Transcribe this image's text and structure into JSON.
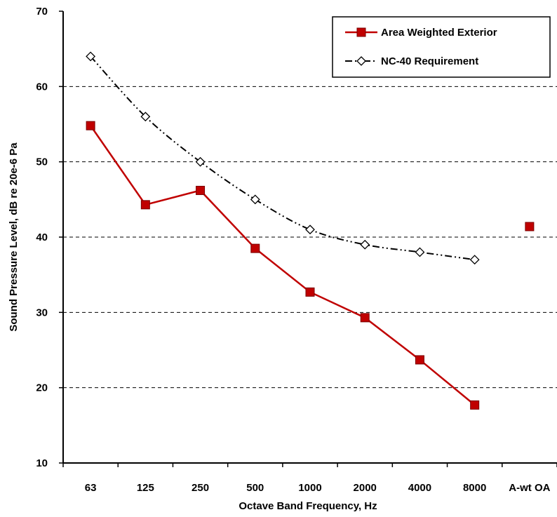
{
  "chart_data": {
    "type": "line",
    "title": "",
    "xlabel": "Octave Band Frequency, Hz",
    "ylabel": "Sound Pressure Level, dB re 20e-6 Pa",
    "ylim": [
      10,
      70
    ],
    "yticks": [
      10,
      20,
      30,
      40,
      50,
      60,
      70
    ],
    "categories": [
      "63",
      "125",
      "250",
      "500",
      "1000",
      "2000",
      "4000",
      "8000",
      "A-wt OA"
    ],
    "grid": "horizontal dashed",
    "legend_position": "top-right",
    "series": [
      {
        "name": "Area Weighted Exterior",
        "color": "#c00000",
        "marker": "filled-square",
        "line": "solid",
        "values": [
          54.8,
          44.3,
          46.2,
          38.5,
          32.7,
          29.3,
          23.7,
          17.7,
          41.4
        ],
        "unconnected_indices": [
          8
        ]
      },
      {
        "name": "NC-40 Requirement",
        "color": "#000000",
        "marker": "open-diamond",
        "line": "dash-dot-dot",
        "values": [
          64,
          56,
          50,
          45,
          41,
          39,
          38,
          37,
          null
        ]
      }
    ]
  }
}
